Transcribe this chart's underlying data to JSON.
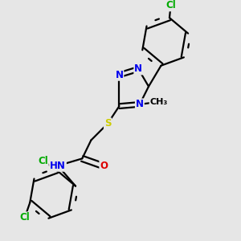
{
  "background_color": "#e6e6e6",
  "atom_colors": {
    "C": "#000000",
    "N": "#0000ee",
    "O": "#dd0000",
    "S": "#cccc00",
    "Cl": "#00aa00",
    "H": "#000000"
  },
  "bond_color": "#000000",
  "bond_width": 1.6,
  "font_size": 8.5,
  "fig_size": [
    3.0,
    3.0
  ],
  "dpi": 100
}
